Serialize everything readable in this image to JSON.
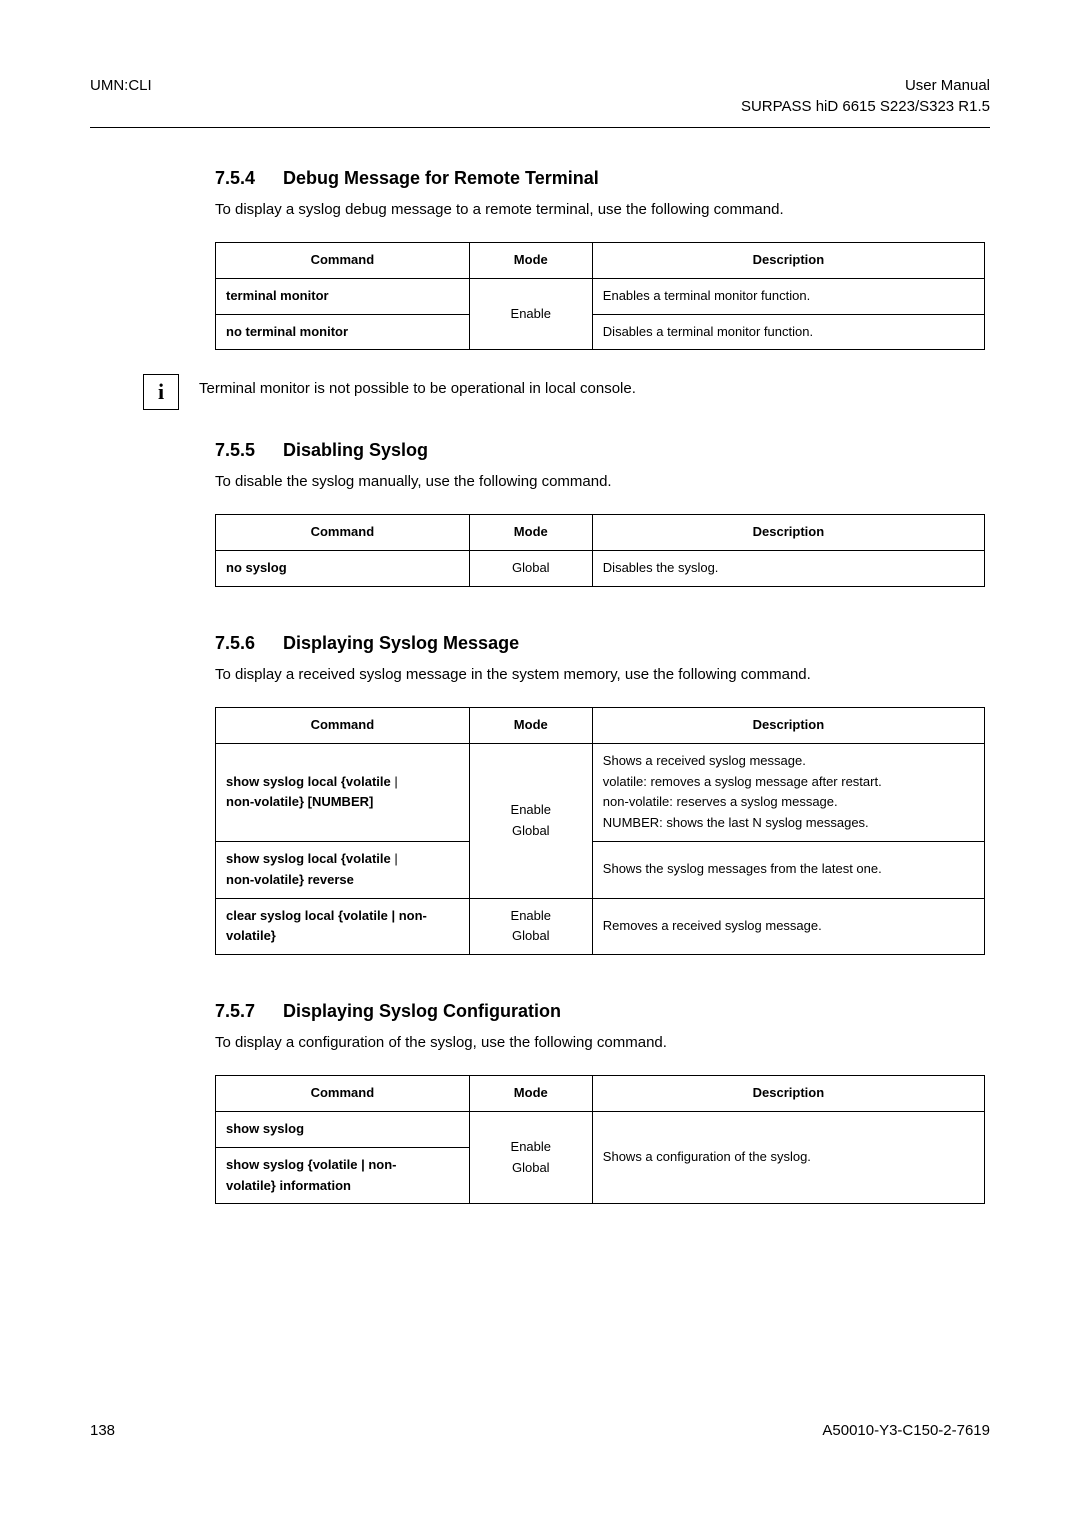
{
  "header": {
    "left": "UMN:CLI",
    "right1": "User  Manual",
    "right2": "SURPASS hiD 6615 S223/S323 R1.5"
  },
  "sections": {
    "s754": {
      "num": "7.5.4",
      "title": "Debug Message for Remote Terminal",
      "text": "To display a syslog debug message to a remote terminal, use the following command."
    },
    "s755": {
      "num": "7.5.5",
      "title": "Disabling Syslog",
      "text": "To disable the syslog manually, use the following command."
    },
    "s756": {
      "num": "7.5.6",
      "title": "Displaying Syslog Message",
      "text": "To display a received syslog message in the system memory, use the following command."
    },
    "s757": {
      "num": "7.5.7",
      "title": "Displaying Syslog Configuration",
      "text": "To display a configuration of the syslog, use the following command."
    }
  },
  "table_headers": {
    "command": "Command",
    "mode": "Mode",
    "description": "Description"
  },
  "tables": {
    "t1": {
      "r1_cmd": "terminal monitor",
      "r1_desc": "Enables a terminal monitor function.",
      "r2_cmd": "no terminal monitor",
      "r2_desc": "Disables a terminal monitor function.",
      "mode": "Enable"
    },
    "t2": {
      "r1_cmd": "no syslog",
      "r1_desc": "Disables the syslog.",
      "mode": "Global"
    },
    "t3": {
      "r1_cmd_a": "show syslog local {volatile",
      "r1_cmd_b": "non-volatile} [NUMBER]",
      "r1_desc_a": "Shows a received syslog message.",
      "r1_desc_b": "volatile: removes a syslog message after restart.",
      "r1_desc_c": "non-volatile: reserves a syslog message.",
      "r1_desc_d": "NUMBER: shows the last N syslog messages.",
      "r2_cmd_a": "show syslog local {volatile",
      "r2_cmd_b": "non-volatile} reverse",
      "r2_desc": "Shows the syslog messages from the latest one.",
      "r3_cmd_a": "clear syslog local {volatile | non-",
      "r3_cmd_b": "volatile}",
      "r3_desc": "Removes a received syslog message.",
      "mode1": "Enable\nGlobal",
      "mode1_a": "Enable",
      "mode1_b": "Global",
      "mode2_a": "Enable",
      "mode2_b": "Global"
    },
    "t4": {
      "r1_cmd": "show syslog",
      "r2_cmd_a": "show syslog {volatile | non-",
      "r2_cmd_b": "volatile} information",
      "desc": "Shows a configuration of the syslog.",
      "mode_a": "Enable",
      "mode_b": "Global"
    }
  },
  "info": {
    "icon": "i",
    "text": "Terminal monitor is not possible to be operational in local console."
  },
  "footer": {
    "page": "138",
    "doc": "A50010-Y3-C150-2-7619"
  },
  "pipe": " | "
}
